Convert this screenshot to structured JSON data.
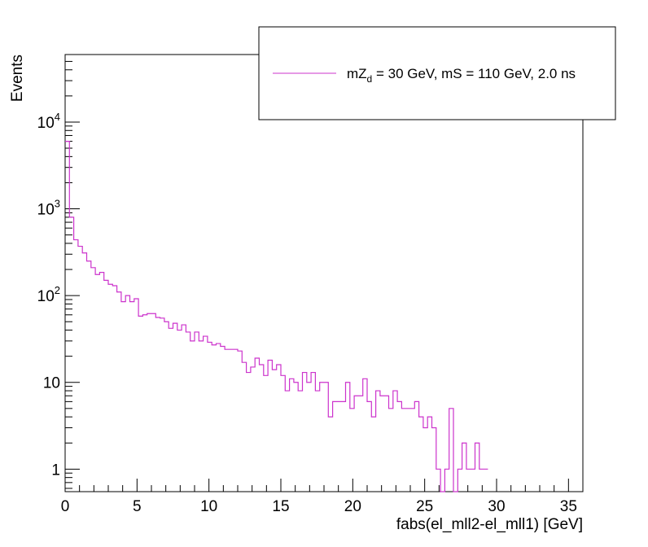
{
  "chart_data": {
    "type": "histogram",
    "title": "",
    "xlabel": "fabs(el_mll2-el_mll1) [GeV]",
    "ylabel": "Events",
    "xlim": [
      0,
      36
    ],
    "ylim": [
      0.55,
      60000
    ],
    "yscale": "log",
    "grid": false,
    "legend_position": "top-right",
    "x_tick_labels": [
      "0",
      "5",
      "10",
      "15",
      "20",
      "25",
      "30",
      "35"
    ],
    "x_ticks": [
      0,
      5,
      10,
      15,
      20,
      25,
      30,
      35
    ],
    "y_ticks": [
      {
        "value": 1,
        "base": "1",
        "exp": ""
      },
      {
        "value": 10,
        "base": "10",
        "exp": ""
      },
      {
        "value": 100,
        "base": "10",
        "exp": "2"
      },
      {
        "value": 1000,
        "base": "10",
        "exp": "3"
      },
      {
        "value": 10000,
        "base": "10",
        "exp": "4"
      }
    ],
    "series": [
      {
        "name_parts": {
          "pre": "mZ",
          "sub": "d",
          "post": " = 30 GeV, mS = 110 GeV, 2.0 ns"
        },
        "color": "#cc33cc",
        "bin_width": 0.3,
        "x_start": 0,
        "values": [
          6000,
          800,
          440,
          370,
          310,
          250,
          210,
          175,
          185,
          150,
          135,
          130,
          110,
          85,
          100,
          85,
          92,
          58,
          60,
          62,
          62,
          56,
          55,
          50,
          42,
          48,
          40,
          46,
          38,
          30,
          38,
          30,
          34,
          29,
          27,
          28,
          26,
          24,
          24,
          24,
          23,
          17,
          13,
          15,
          19,
          16,
          12,
          18,
          14,
          16,
          12,
          8,
          11,
          10,
          8,
          13,
          10,
          13,
          8,
          10,
          10,
          4,
          6,
          6,
          6,
          10,
          5,
          7,
          7,
          11,
          6,
          4,
          8,
          7,
          7,
          5,
          8,
          6,
          5,
          5,
          5,
          6,
          4,
          3,
          4,
          3,
          1,
          0,
          1,
          5,
          0,
          1,
          2,
          1,
          1,
          2,
          1,
          1
        ]
      }
    ]
  }
}
